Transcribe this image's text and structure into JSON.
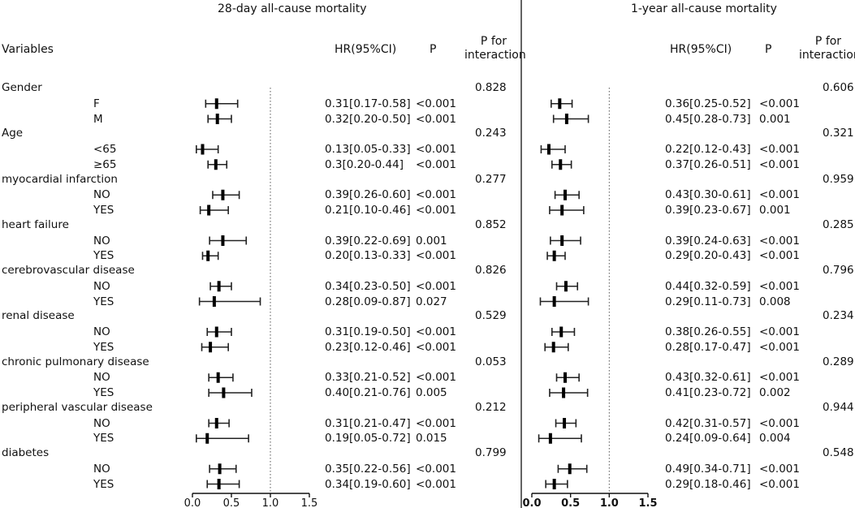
{
  "panels": [
    {
      "title": "28-day all-cause mortality"
    },
    {
      "title": "1-year all-cause mortality"
    }
  ],
  "headers": {
    "variables": "Variables",
    "hr": "HR(95%CI)",
    "p": "P",
    "p_int_line1": "P for",
    "p_int_line2": "interaction"
  },
  "chart_data": [
    {
      "type": "forest",
      "title": "28-day all-cause mortality",
      "xlim": [
        0,
        1.5
      ],
      "reference_line": 1.0,
      "xticks": [
        "0.0",
        "0.5",
        "1.0",
        "1.5"
      ],
      "groups": [
        {
          "name": "Gender",
          "p_interaction": "0.828",
          "rows": [
            {
              "label": "F",
              "hr": 0.31,
              "lo": 0.17,
              "hi": 0.58,
              "text": "0.31[0.17-0.58]",
              "p": "<0.001"
            },
            {
              "label": "M",
              "hr": 0.32,
              "lo": 0.2,
              "hi": 0.5,
              "text": "0.32[0.20-0.50]",
              "p": "<0.001"
            }
          ]
        },
        {
          "name": "Age",
          "p_interaction": "0.243",
          "rows": [
            {
              "label": "<65",
              "hr": 0.13,
              "lo": 0.05,
              "hi": 0.33,
              "text": "0.13[0.05-0.33]",
              "p": "<0.001"
            },
            {
              "label": "≥65",
              "hr": 0.3,
              "lo": 0.2,
              "hi": 0.44,
              "text": "0.3[0.20-0.44]",
              "p": "<0.001"
            }
          ]
        },
        {
          "name": "myocardial infarction",
          "p_interaction": "0.277",
          "rows": [
            {
              "label": "NO",
              "hr": 0.39,
              "lo": 0.26,
              "hi": 0.6,
              "text": "0.39[0.26-0.60]",
              "p": "<0.001"
            },
            {
              "label": "YES",
              "hr": 0.21,
              "lo": 0.1,
              "hi": 0.46,
              "text": "0.21[0.10-0.46]",
              "p": "<0.001"
            }
          ]
        },
        {
          "name": "heart failure",
          "p_interaction": "0.852",
          "rows": [
            {
              "label": "NO",
              "hr": 0.39,
              "lo": 0.22,
              "hi": 0.69,
              "text": "0.39[0.22-0.69]",
              "p": "0.001"
            },
            {
              "label": "YES",
              "hr": 0.2,
              "lo": 0.13,
              "hi": 0.33,
              "text": "0.20[0.13-0.33]",
              "p": "<0.001"
            }
          ]
        },
        {
          "name": "cerebrovascular disease",
          "p_interaction": "0.826",
          "rows": [
            {
              "label": "NO",
              "hr": 0.34,
              "lo": 0.23,
              "hi": 0.5,
              "text": "0.34[0.23-0.50]",
              "p": "<0.001"
            },
            {
              "label": "YES",
              "hr": 0.28,
              "lo": 0.09,
              "hi": 0.87,
              "text": "0.28[0.09-0.87]",
              "p": "0.027"
            }
          ]
        },
        {
          "name": "renal disease",
          "p_interaction": "0.529",
          "rows": [
            {
              "label": "NO",
              "hr": 0.31,
              "lo": 0.19,
              "hi": 0.5,
              "text": "0.31[0.19-0.50]",
              "p": "<0.001"
            },
            {
              "label": "YES",
              "hr": 0.23,
              "lo": 0.12,
              "hi": 0.46,
              "text": "0.23[0.12-0.46]",
              "p": "<0.001"
            }
          ]
        },
        {
          "name": "chronic pulmonary disease",
          "p_interaction": "0.053",
          "rows": [
            {
              "label": "NO",
              "hr": 0.33,
              "lo": 0.21,
              "hi": 0.52,
              "text": "0.33[0.21-0.52]",
              "p": "<0.001"
            },
            {
              "label": "YES",
              "hr": 0.4,
              "lo": 0.21,
              "hi": 0.76,
              "text": "0.40[0.21-0.76]",
              "p": "0.005"
            }
          ]
        },
        {
          "name": "peripheral vascular disease",
          "p_interaction": "0.212",
          "rows": [
            {
              "label": "NO",
              "hr": 0.31,
              "lo": 0.21,
              "hi": 0.47,
              "text": "0.31[0.21-0.47]",
              "p": "<0.001"
            },
            {
              "label": "YES",
              "hr": 0.19,
              "lo": 0.05,
              "hi": 0.72,
              "text": "0.19[0.05-0.72]",
              "p": "0.015"
            }
          ]
        },
        {
          "name": "diabetes",
          "p_interaction": "0.799",
          "rows": [
            {
              "label": "NO",
              "hr": 0.35,
              "lo": 0.22,
              "hi": 0.56,
              "text": "0.35[0.22-0.56]",
              "p": "<0.001"
            },
            {
              "label": "YES",
              "hr": 0.34,
              "lo": 0.19,
              "hi": 0.6,
              "text": "0.34[0.19-0.60]",
              "p": "<0.001"
            }
          ]
        }
      ]
    },
    {
      "type": "forest",
      "title": "1-year all-cause mortality",
      "xlim": [
        0,
        1.5
      ],
      "reference_line": 1.0,
      "xticks": [
        "0.0",
        "0.5",
        "1.0",
        "1.5"
      ],
      "groups": [
        {
          "name": "Gender",
          "p_interaction": "0.606",
          "rows": [
            {
              "label": "F",
              "hr": 0.36,
              "lo": 0.25,
              "hi": 0.52,
              "text": "0.36[0.25-0.52]",
              "p": "<0.001"
            },
            {
              "label": "M",
              "hr": 0.45,
              "lo": 0.28,
              "hi": 0.73,
              "text": "0.45[0.28-0.73]",
              "p": "0.001"
            }
          ]
        },
        {
          "name": "Age",
          "p_interaction": "0.321",
          "rows": [
            {
              "label": "<65",
              "hr": 0.22,
              "lo": 0.12,
              "hi": 0.43,
              "text": "0.22[0.12-0.43]",
              "p": "<0.001"
            },
            {
              "label": "≥65",
              "hr": 0.37,
              "lo": 0.26,
              "hi": 0.51,
              "text": "0.37[0.26-0.51]",
              "p": "<0.001"
            }
          ]
        },
        {
          "name": "myocardial infarction",
          "p_interaction": "0.959",
          "rows": [
            {
              "label": "NO",
              "hr": 0.43,
              "lo": 0.3,
              "hi": 0.61,
              "text": "0.43[0.30-0.61]",
              "p": "<0.001"
            },
            {
              "label": "YES",
              "hr": 0.39,
              "lo": 0.23,
              "hi": 0.67,
              "text": "0.39[0.23-0.67]",
              "p": "0.001"
            }
          ]
        },
        {
          "name": "heart failure",
          "p_interaction": "0.285",
          "rows": [
            {
              "label": "NO",
              "hr": 0.39,
              "lo": 0.24,
              "hi": 0.63,
              "text": "0.39[0.24-0.63]",
              "p": "<0.001"
            },
            {
              "label": "YES",
              "hr": 0.29,
              "lo": 0.2,
              "hi": 0.43,
              "text": "0.29[0.20-0.43]",
              "p": "<0.001"
            }
          ]
        },
        {
          "name": "cerebrovascular disease",
          "p_interaction": "0.796",
          "rows": [
            {
              "label": "NO",
              "hr": 0.44,
              "lo": 0.32,
              "hi": 0.59,
              "text": "0.44[0.32-0.59]",
              "p": "<0.001"
            },
            {
              "label": "YES",
              "hr": 0.29,
              "lo": 0.11,
              "hi": 0.73,
              "text": "0.29[0.11-0.73]",
              "p": "0.008"
            }
          ]
        },
        {
          "name": "renal disease",
          "p_interaction": "0.234",
          "rows": [
            {
              "label": "NO",
              "hr": 0.38,
              "lo": 0.26,
              "hi": 0.55,
              "text": "0.38[0.26-0.55]",
              "p": "<0.001"
            },
            {
              "label": "YES",
              "hr": 0.28,
              "lo": 0.17,
              "hi": 0.47,
              "text": "0.28[0.17-0.47]",
              "p": "<0.001"
            }
          ]
        },
        {
          "name": "chronic pulmonary disease",
          "p_interaction": "0.289",
          "rows": [
            {
              "label": "NO",
              "hr": 0.43,
              "lo": 0.32,
              "hi": 0.61,
              "text": "0.43[0.32-0.61]",
              "p": "<0.001"
            },
            {
              "label": "YES",
              "hr": 0.41,
              "lo": 0.23,
              "hi": 0.72,
              "text": "0.41[0.23-0.72]",
              "p": "0.002"
            }
          ]
        },
        {
          "name": "peripheral vascular disease",
          "p_interaction": "0.944",
          "rows": [
            {
              "label": "NO",
              "hr": 0.42,
              "lo": 0.31,
              "hi": 0.57,
              "text": "0.42[0.31-0.57]",
              "p": "<0.001"
            },
            {
              "label": "YES",
              "hr": 0.24,
              "lo": 0.09,
              "hi": 0.64,
              "text": "0.24[0.09-0.64]",
              "p": "0.004"
            }
          ]
        },
        {
          "name": "diabetes",
          "p_interaction": "0.548",
          "rows": [
            {
              "label": "NO",
              "hr": 0.49,
              "lo": 0.34,
              "hi": 0.71,
              "text": "0.49[0.34-0.71]",
              "p": "<0.001"
            },
            {
              "label": "YES",
              "hr": 0.29,
              "lo": 0.18,
              "hi": 0.46,
              "text": "0.29[0.18-0.46]",
              "p": "<0.001"
            }
          ]
        }
      ]
    }
  ]
}
